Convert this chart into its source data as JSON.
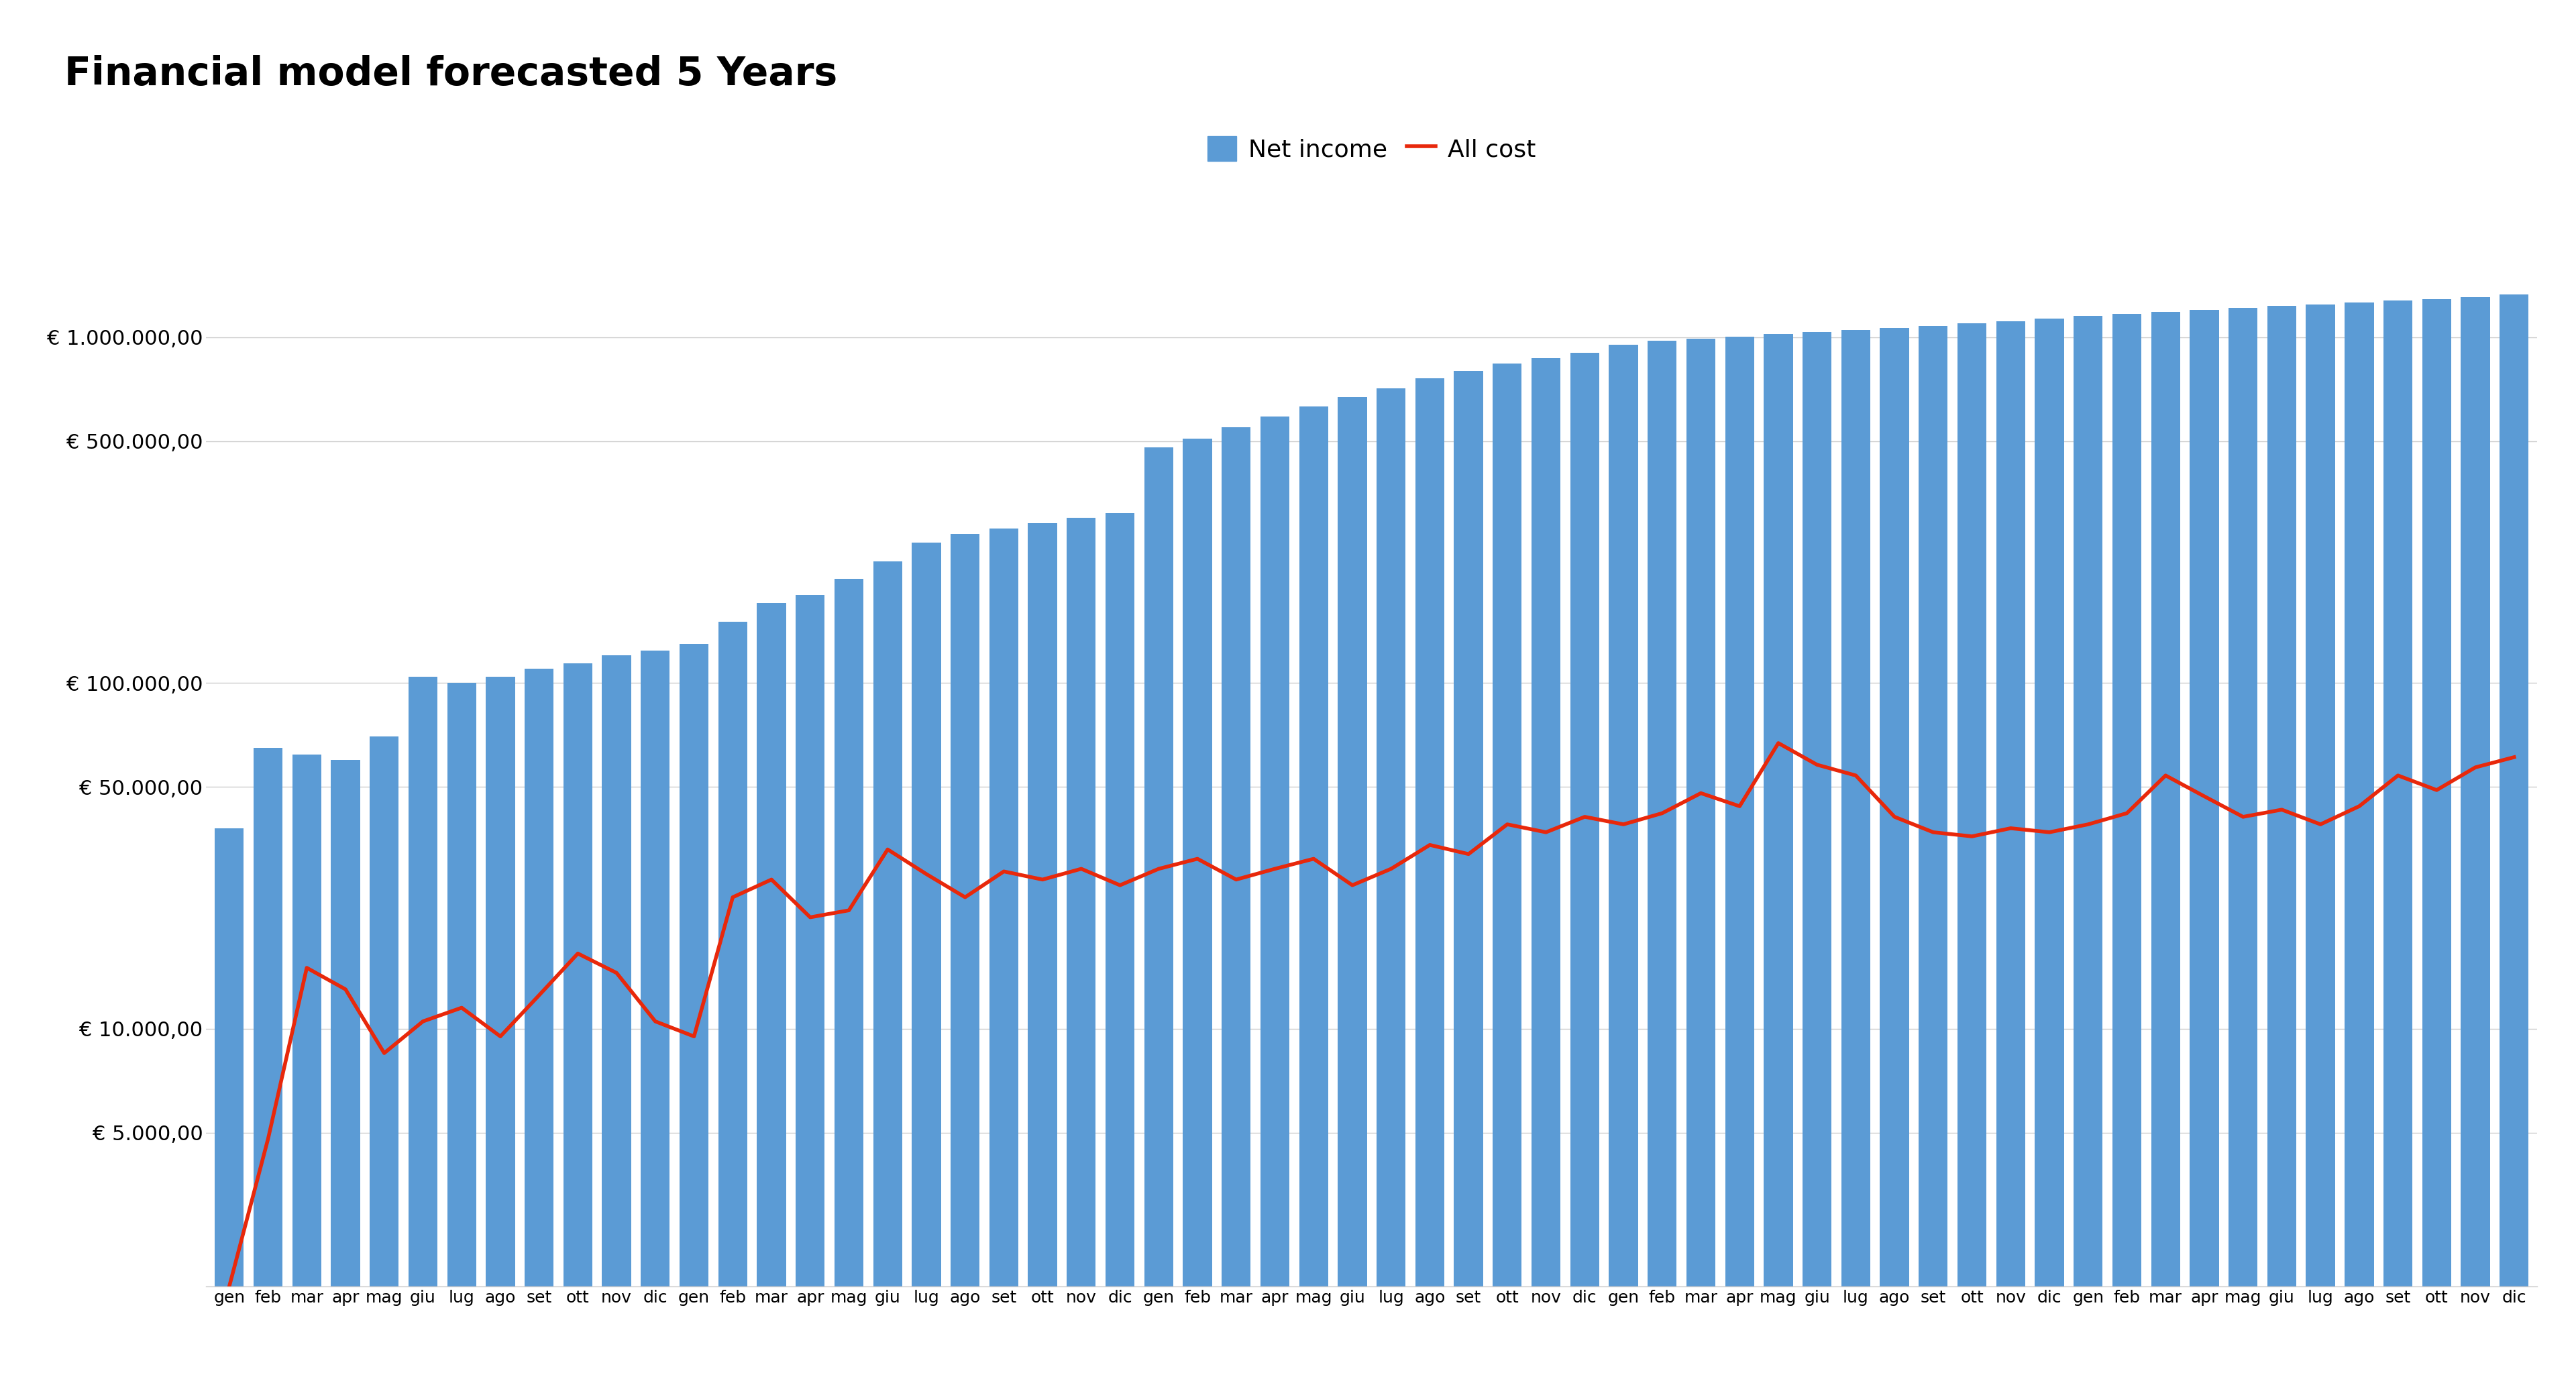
{
  "title": "Financial model forecasted 5 Years",
  "title_fontsize": 42,
  "title_fontweight": "bold",
  "bar_color": "#5B9BD5",
  "line_color": "#E8280B",
  "background_color": "#FFFFFF",
  "legend_labels": [
    "Net income",
    "All cost"
  ],
  "months_it": [
    "gen",
    "feb",
    "mar",
    "apr",
    "mag",
    "giu",
    "lug",
    "ago",
    "set",
    "ott",
    "nov",
    "dic"
  ],
  "net_income": [
    38000,
    65000,
    62000,
    60000,
    70000,
    104000,
    100000,
    104000,
    110000,
    114000,
    120000,
    124000,
    130000,
    150000,
    170000,
    180000,
    200000,
    225000,
    255000,
    270000,
    280000,
    290000,
    300000,
    310000,
    480000,
    510000,
    550000,
    590000,
    630000,
    670000,
    710000,
    760000,
    800000,
    840000,
    870000,
    900000,
    950000,
    975000,
    990000,
    1005000,
    1020000,
    1035000,
    1050000,
    1065000,
    1080000,
    1095000,
    1110000,
    1130000,
    1150000,
    1170000,
    1185000,
    1200000,
    1215000,
    1230000,
    1245000,
    1260000,
    1275000,
    1290000,
    1305000,
    1330000
  ],
  "all_cost": [
    1800,
    4800,
    15000,
    13000,
    8500,
    10500,
    11500,
    9500,
    12500,
    16500,
    14500,
    10500,
    9500,
    24000,
    27000,
    21000,
    22000,
    33000,
    28000,
    24000,
    28500,
    27000,
    29000,
    26000,
    29000,
    31000,
    27000,
    29000,
    31000,
    26000,
    29000,
    34000,
    32000,
    39000,
    37000,
    41000,
    39000,
    42000,
    48000,
    44000,
    67000,
    58000,
    54000,
    41000,
    37000,
    36000,
    38000,
    37000,
    39000,
    42000,
    54000,
    47000,
    41000,
    43000,
    39000,
    44000,
    54000,
    49000,
    57000,
    61000
  ],
  "yticks": [
    5000,
    10000,
    50000,
    100000,
    500000,
    1000000
  ],
  "ytick_labels": [
    "€ 5.000,00",
    "€ 10.000,00",
    "€ 50.000,00",
    "€ 100.000,00",
    "€ 500.000,00",
    "€ 1.000.000,00"
  ],
  "ymin": 1800,
  "ymax": 1800000,
  "grid_color": "#CCCCCC",
  "line_width": 4.0,
  "tick_fontsize": 22,
  "xtick_fontsize": 18
}
